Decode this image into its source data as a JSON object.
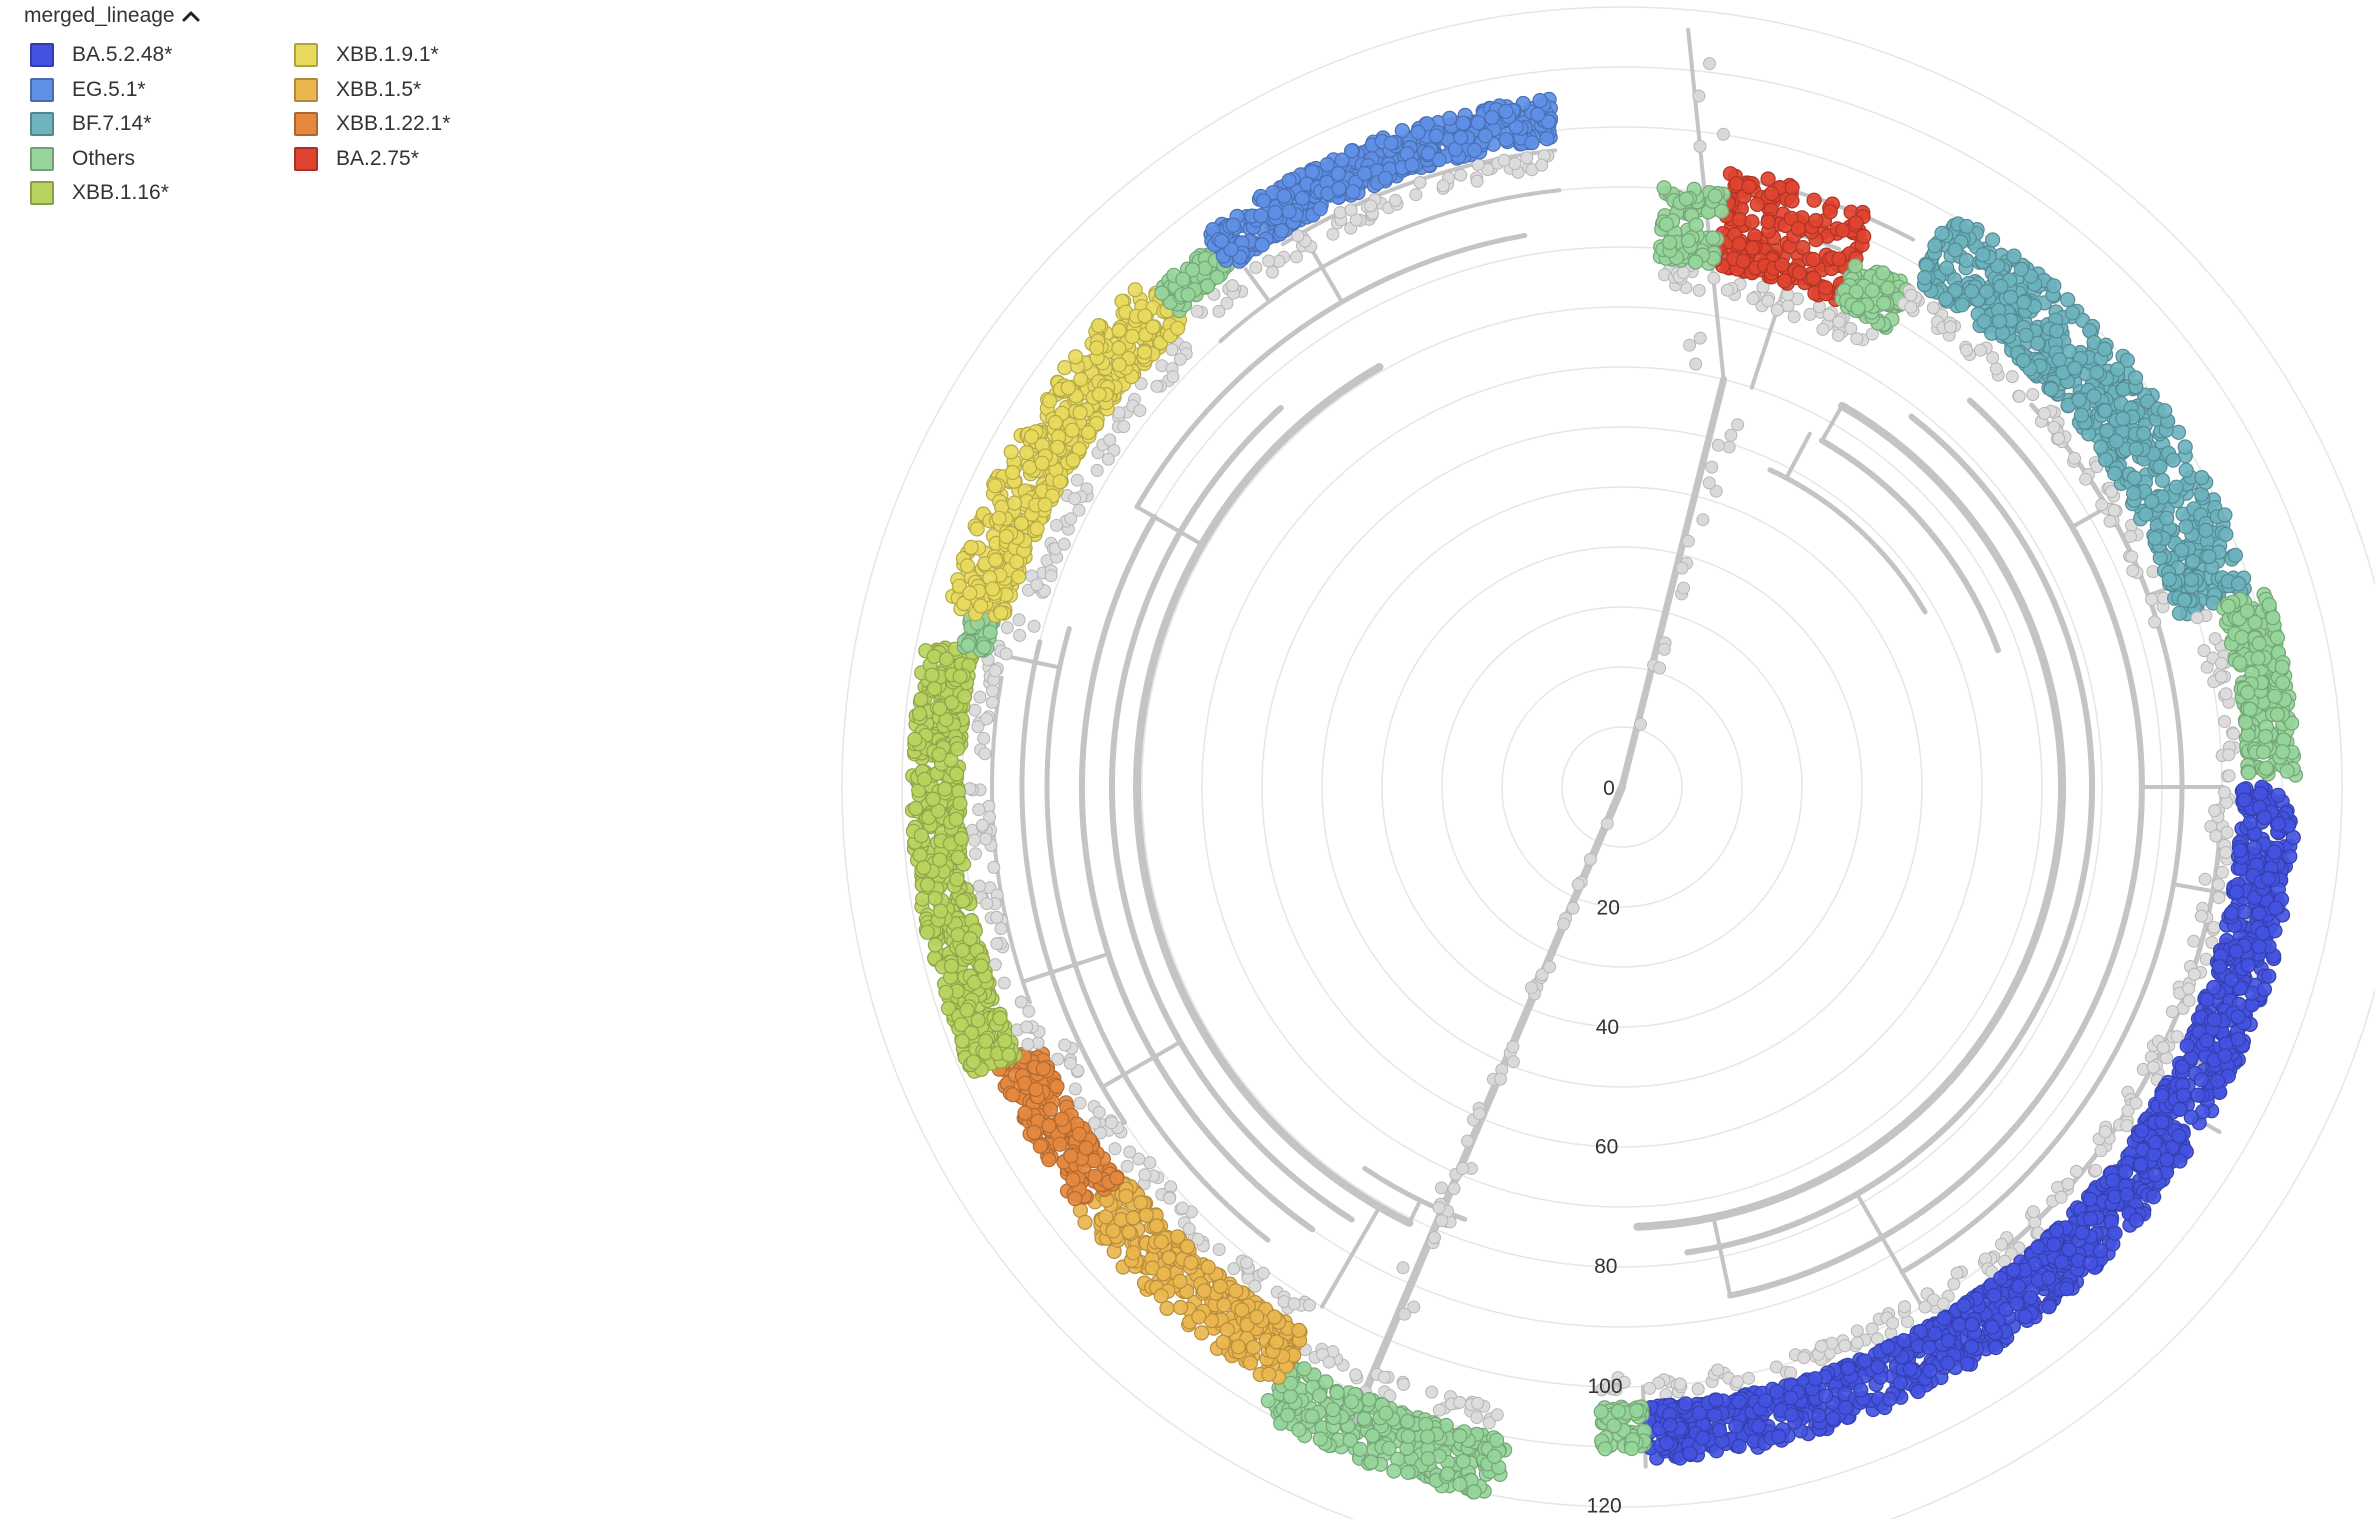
{
  "legend": {
    "title": "merged_lineage",
    "collapse_icon": "chevron-up-icon",
    "items": [
      {
        "label": "BA.5.2.48*",
        "color": "#4352E0"
      },
      {
        "label": "EG.5.1*",
        "color": "#5F8FE6"
      },
      {
        "label": "BF.7.14*",
        "color": "#6DB3BE"
      },
      {
        "label": "Others",
        "color": "#96D59A"
      },
      {
        "label": "XBB.1.16*",
        "color": "#B8D45E"
      },
      {
        "label": "XBB.1.9.1*",
        "color": "#E8DA5C"
      },
      {
        "label": "XBB.1.5*",
        "color": "#EAB64E"
      },
      {
        "label": "XBB.1.22.1*",
        "color": "#E4883F"
      },
      {
        "label": "BA.2.75*",
        "color": "#E0432F"
      }
    ]
  },
  "tree": {
    "layout": "radial",
    "branch_color": "#C4C4C4",
    "internal_node_color": "#D9D9D9",
    "grid_color": "#E6E6E6",
    "axis_ticks": [
      "0",
      "20",
      "40",
      "60",
      "80",
      "100",
      "120"
    ],
    "clades": [
      {
        "lineage": "BA.5.2.48*",
        "angle_start": 90,
        "angle_end": 178,
        "divergence": [
          103,
          112
        ]
      },
      {
        "lineage": "Others",
        "angle_start": 178,
        "angle_end": 182,
        "divergence": [
          103,
          110
        ]
      },
      {
        "lineage": "Others",
        "angle_start": 190,
        "angle_end": 210,
        "divergence": [
          110,
          120
        ]
      },
      {
        "lineage": "XBB.1.5*",
        "angle_start": 210,
        "angle_end": 232,
        "divergence": [
          105,
          115
        ]
      },
      {
        "lineage": "XBB.1.22.1*",
        "angle_start": 232,
        "angle_end": 246,
        "divergence": [
          106,
          114
        ]
      },
      {
        "lineage": "XBB.1.16*",
        "angle_start": 246,
        "angle_end": 282,
        "divergence": [
          110,
          118
        ]
      },
      {
        "lineage": "Others",
        "angle_start": 282,
        "angle_end": 285,
        "divergence": [
          108,
          112
        ]
      },
      {
        "lineage": "XBB.1.9.1*",
        "angle_start": 285,
        "angle_end": 317,
        "divergence": [
          106,
          116
        ]
      },
      {
        "lineage": "Others",
        "angle_start": 317,
        "angle_end": 323,
        "divergence": [
          108,
          113
        ]
      },
      {
        "lineage": "EG.5.1*",
        "angle_start": 323,
        "angle_end": 354,
        "divergence": [
          108,
          115
        ]
      },
      {
        "lineage": "BA.2.75*",
        "angle_start": 10,
        "angle_end": 24,
        "divergence": [
          88,
          104
        ]
      },
      {
        "lineage": "Others",
        "angle_start": 4,
        "angle_end": 10,
        "divergence": [
          88,
          100
        ]
      },
      {
        "lineage": "Others",
        "angle_start": 24,
        "angle_end": 30,
        "divergence": [
          88,
          96
        ]
      },
      {
        "lineage": "BF.7.14*",
        "angle_start": 30,
        "angle_end": 73,
        "divergence": [
          97,
          110
        ]
      },
      {
        "lineage": "Others",
        "angle_start": 73,
        "angle_end": 89,
        "divergence": [
          104,
          112
        ]
      }
    ]
  }
}
